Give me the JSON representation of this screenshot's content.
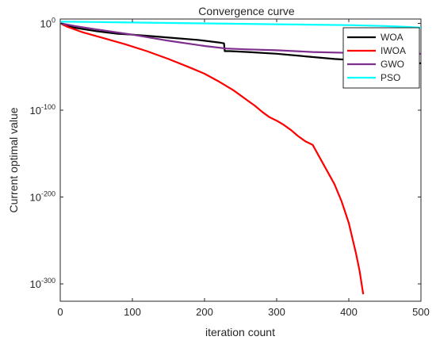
{
  "chart_data": {
    "type": "line",
    "title": "Convergence curve",
    "xlabel": "iteration count",
    "ylabel": "Current optimal value",
    "xlim": [
      0,
      500
    ],
    "ylim_exponent": [
      -320,
      5
    ],
    "yscale": "log",
    "grid": false,
    "legend_position": "top-right",
    "x_ticks": [
      "0",
      "100",
      "200",
      "300",
      "400",
      "500"
    ],
    "y_ticks": [
      {
        "base": "10",
        "exp": "0",
        "value_exp": 0
      },
      {
        "base": "10",
        "exp": "-100",
        "value_exp": -100
      },
      {
        "base": "10",
        "exp": "-200",
        "value_exp": -200
      },
      {
        "base": "10",
        "exp": "-300",
        "value_exp": -300
      }
    ],
    "series": [
      {
        "name": "WOA",
        "color": "#000000",
        "x": [
          1,
          5,
          20,
          50,
          80,
          100,
          130,
          160,
          190,
          220,
          227,
          228,
          235,
          260,
          300,
          340,
          380,
          400,
          420,
          440,
          460,
          480,
          500
        ],
        "exp": [
          0,
          -2,
          -5,
          -9,
          -12,
          -13,
          -15,
          -17,
          -19,
          -22,
          -23,
          -32,
          -32,
          -33,
          -35,
          -38,
          -41,
          -42,
          -43,
          -44,
          -45,
          -45,
          -46
        ]
      },
      {
        "name": "IWOA",
        "color": "#ff0000",
        "x": [
          1,
          10,
          30,
          60,
          90,
          120,
          150,
          180,
          200,
          220,
          240,
          260,
          270,
          280,
          290,
          300,
          310,
          320,
          330,
          340,
          350,
          360,
          370,
          380,
          390,
          400,
          410,
          415,
          420
        ],
        "exp": [
          0,
          -4,
          -10,
          -17,
          -24,
          -32,
          -41,
          -51,
          -58,
          -67,
          -77,
          -89,
          -95,
          -102,
          -108,
          -112,
          -117,
          -123,
          -130,
          -136,
          -140,
          -155,
          -170,
          -185,
          -205,
          -230,
          -265,
          -285,
          -312
        ]
      },
      {
        "name": "GWO",
        "color": "#7e2f8e",
        "x": [
          1,
          20,
          50,
          100,
          150,
          200,
          230,
          260,
          300,
          350,
          400,
          450,
          500
        ],
        "exp": [
          0,
          -3,
          -7,
          -13,
          -20,
          -26,
          -29,
          -30,
          -31,
          -33,
          -34,
          -35,
          -35
        ]
      },
      {
        "name": "PSO",
        "color": "#00ffff",
        "x": [
          1,
          50,
          100,
          200,
          300,
          400,
          450,
          480,
          500
        ],
        "exp": [
          2,
          1.5,
          1,
          0,
          -1,
          -2,
          -3,
          -4,
          -5
        ]
      }
    ]
  }
}
